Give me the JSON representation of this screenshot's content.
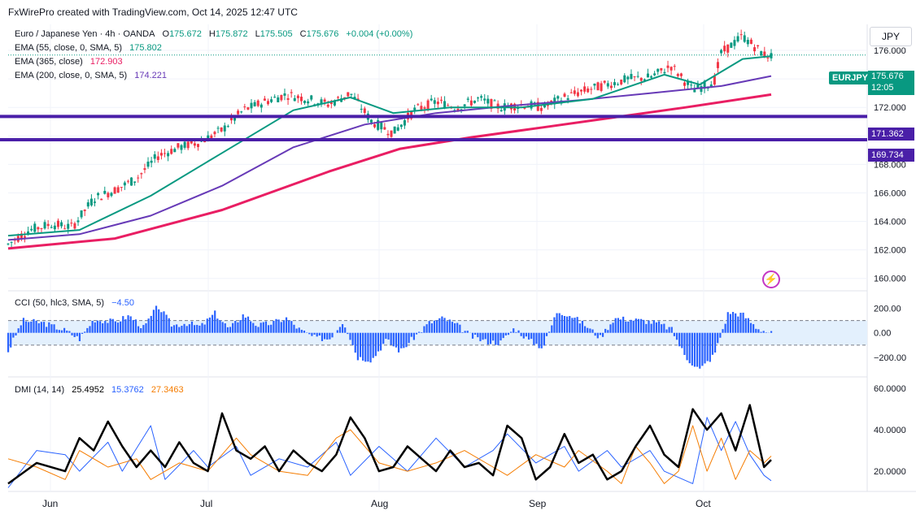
{
  "header": {
    "credit": "FxWirePro created with TradingView.com, Oct 14, 2025 12:47 UTC"
  },
  "currency_badge": "JPY",
  "symbol_tag": "EURJPY",
  "price_tag": {
    "price": "175.676",
    "countdown": "12:05"
  },
  "levels": [
    {
      "value": 171.362,
      "label": "171.362"
    },
    {
      "value": 169.734,
      "label": "169.734"
    }
  ],
  "legend": {
    "main": "Euro / Japanese Yen · 4h · OANDA",
    "o_label": "O",
    "o": "175.672",
    "h_label": "H",
    "h": "175.872",
    "l_label": "L",
    "l": "175.505",
    "c_label": "C",
    "c": "175.676",
    "change": "+0.004 (+0.00%)",
    "ema55": "EMA (55, close, 0, SMA, 5)",
    "ema55_val": "175.802",
    "ema365": "EMA (365, close)",
    "ema365_val": "172.903",
    "ema200": "EMA (200, close, 0, SMA, 5)",
    "ema200_val": "174.221",
    "cci": "CCI (50, hlc3, SMA, 5)",
    "cci_val": "−4.50",
    "dmi": "DMI (14, 14)",
    "adx_val": "25.4952",
    "dip_val": "15.3762",
    "dim_val": "27.3463"
  },
  "colors": {
    "up": "#089981",
    "down": "#f23645",
    "ema55": "#089981",
    "ema365": "#e91e63",
    "ema200": "#673ab7",
    "level": "#4a1fa8",
    "cci": "#2962ff",
    "adx": "#000000",
    "dip": "#2962ff",
    "dim": "#f57c00"
  },
  "chart_data": [
    {
      "type": "candlestick",
      "title": "Euro / Japanese Yen · 4h · OANDA",
      "x_ticks": [
        "Jun",
        "Jul",
        "Aug",
        "Sep",
        "Oct"
      ],
      "y_ticks": [
        "176.000",
        "174.000",
        "172.000",
        "170.000",
        "168.000",
        "166.000",
        "164.000",
        "162.000",
        "160.000"
      ],
      "ylim": [
        159.3,
        176.8
      ],
      "price_path": [
        [
          0,
          162.4
        ],
        [
          3,
          163.4
        ],
        [
          6,
          163.8
        ],
        [
          9,
          163.6
        ],
        [
          12,
          165.6
        ],
        [
          15,
          166.2
        ],
        [
          18,
          167.0
        ],
        [
          21,
          168.6
        ],
        [
          24,
          169.2
        ],
        [
          27,
          169.6
        ],
        [
          30,
          170.4
        ],
        [
          33,
          171.8
        ],
        [
          36,
          172.4
        ],
        [
          39,
          172.9
        ],
        [
          42,
          172.6
        ],
        [
          45,
          172.2
        ],
        [
          48,
          173.0
        ],
        [
          51,
          171.0
        ],
        [
          54,
          170.2
        ],
        [
          57,
          171.8
        ],
        [
          60,
          172.4
        ],
        [
          63,
          172.0
        ],
        [
          66,
          172.6
        ],
        [
          69,
          172.0
        ],
        [
          72,
          172.2
        ],
        [
          75,
          172.0
        ],
        [
          78,
          172.7
        ],
        [
          81,
          173.2
        ],
        [
          84,
          173.6
        ],
        [
          87,
          174.0
        ],
        [
          90,
          174.1
        ],
        [
          93,
          174.9
        ],
        [
          96,
          173.2
        ],
        [
          99,
          173.8
        ],
        [
          100,
          175.8
        ],
        [
          103,
          177.0
        ],
        [
          106,
          175.7
        ],
        [
          107,
          175.6
        ]
      ],
      "ema55": [
        [
          0,
          163.0
        ],
        [
          10,
          163.4
        ],
        [
          20,
          165.8
        ],
        [
          30,
          168.8
        ],
        [
          40,
          171.8
        ],
        [
          48,
          172.7
        ],
        [
          54,
          171.6
        ],
        [
          62,
          172.0
        ],
        [
          72,
          172.0
        ],
        [
          82,
          172.6
        ],
        [
          92,
          174.3
        ],
        [
          97,
          173.6
        ],
        [
          103,
          175.4
        ],
        [
          107,
          175.6
        ]
      ],
      "ema200": [
        [
          0,
          162.7
        ],
        [
          10,
          163.1
        ],
        [
          20,
          164.4
        ],
        [
          30,
          166.5
        ],
        [
          40,
          169.2
        ],
        [
          50,
          170.8
        ],
        [
          60,
          171.6
        ],
        [
          70,
          172.1
        ],
        [
          80,
          172.5
        ],
        [
          90,
          173.0
        ],
        [
          100,
          173.5
        ],
        [
          107,
          174.2
        ]
      ],
      "ema365": [
        [
          0,
          162.1
        ],
        [
          15,
          162.8
        ],
        [
          30,
          164.8
        ],
        [
          45,
          167.5
        ],
        [
          55,
          169.1
        ],
        [
          65,
          169.9
        ],
        [
          75,
          170.6
        ],
        [
          85,
          171.3
        ],
        [
          95,
          172.0
        ],
        [
          107,
          172.9
        ]
      ],
      "levels": [
        171.362,
        169.734
      ]
    },
    {
      "type": "bar",
      "title": "CCI (50, hlc3, SMA, 5)",
      "y_ticks": [
        "200.00",
        "0.00",
        "−200.00"
      ],
      "ylim": [
        -300,
        250
      ],
      "bands": [
        100,
        -100
      ],
      "path": [
        [
          0,
          -150
        ],
        [
          2,
          100
        ],
        [
          5,
          80
        ],
        [
          8,
          20
        ],
        [
          10,
          -50
        ],
        [
          12,
          110
        ],
        [
          15,
          90
        ],
        [
          17,
          140
        ],
        [
          19,
          40
        ],
        [
          21,
          220
        ],
        [
          23,
          60
        ],
        [
          25,
          80
        ],
        [
          27,
          50
        ],
        [
          29,
          160
        ],
        [
          31,
          30
        ],
        [
          33,
          150
        ],
        [
          35,
          60
        ],
        [
          37,
          80
        ],
        [
          39,
          120
        ],
        [
          41,
          20
        ],
        [
          43,
          -40
        ],
        [
          45,
          -50
        ],
        [
          47,
          100
        ],
        [
          49,
          -200
        ],
        [
          51,
          -220
        ],
        [
          53,
          -60
        ],
        [
          55,
          -150
        ],
        [
          57,
          -30
        ],
        [
          59,
          80
        ],
        [
          61,
          120
        ],
        [
          63,
          60
        ],
        [
          65,
          -30
        ],
        [
          67,
          -70
        ],
        [
          69,
          -80
        ],
        [
          71,
          40
        ],
        [
          73,
          -60
        ],
        [
          75,
          -120
        ],
        [
          77,
          180
        ],
        [
          79,
          140
        ],
        [
          81,
          60
        ],
        [
          83,
          -40
        ],
        [
          85,
          120
        ],
        [
          87,
          110
        ],
        [
          89,
          100
        ],
        [
          91,
          80
        ],
        [
          93,
          30
        ],
        [
          95,
          -200
        ],
        [
          97,
          -300
        ],
        [
          99,
          -180
        ],
        [
          101,
          170
        ],
        [
          103,
          150
        ],
        [
          105,
          40
        ],
        [
          107,
          -4.5
        ]
      ]
    },
    {
      "type": "line",
      "title": "DMI (14, 14)",
      "y_ticks": [
        "60.0000",
        "40.0000",
        "20.0000"
      ],
      "ylim": [
        11,
        64
      ],
      "series": [
        {
          "name": "ADX",
          "points": [
            [
              0,
              14
            ],
            [
              4,
              24
            ],
            [
              8,
              20
            ],
            [
              10,
              36
            ],
            [
              12,
              30
            ],
            [
              14,
              44
            ],
            [
              16,
              32
            ],
            [
              18,
              22
            ],
            [
              20,
              30
            ],
            [
              22,
              22
            ],
            [
              24,
              34
            ],
            [
              26,
              24
            ],
            [
              28,
              20
            ],
            [
              30,
              48
            ],
            [
              32,
              30
            ],
            [
              34,
              26
            ],
            [
              36,
              32
            ],
            [
              38,
              20
            ],
            [
              40,
              30
            ],
            [
              42,
              24
            ],
            [
              44,
              20
            ],
            [
              46,
              28
            ],
            [
              48,
              46
            ],
            [
              50,
              36
            ],
            [
              52,
              20
            ],
            [
              54,
              22
            ],
            [
              56,
              32
            ],
            [
              58,
              26
            ],
            [
              60,
              20
            ],
            [
              62,
              30
            ],
            [
              64,
              22
            ],
            [
              66,
              24
            ],
            [
              68,
              18
            ],
            [
              70,
              42
            ],
            [
              72,
              36
            ],
            [
              74,
              16
            ],
            [
              76,
              22
            ],
            [
              78,
              38
            ],
            [
              80,
              24
            ],
            [
              82,
              28
            ],
            [
              84,
              16
            ],
            [
              86,
              20
            ],
            [
              88,
              32
            ],
            [
              90,
              42
            ],
            [
              92,
              28
            ],
            [
              94,
              22
            ],
            [
              96,
              50
            ],
            [
              98,
              40
            ],
            [
              100,
              48
            ],
            [
              102,
              30
            ],
            [
              104,
              52
            ],
            [
              106,
              22
            ],
            [
              107,
              25.5
            ]
          ]
        },
        {
          "name": "DI+",
          "points": [
            [
              0,
              12
            ],
            [
              4,
              30
            ],
            [
              8,
              28
            ],
            [
              10,
              20
            ],
            [
              14,
              34
            ],
            [
              16,
              20
            ],
            [
              20,
              42
            ],
            [
              22,
              16
            ],
            [
              26,
              30
            ],
            [
              28,
              22
            ],
            [
              32,
              32
            ],
            [
              34,
              18
            ],
            [
              38,
              26
            ],
            [
              42,
              22
            ],
            [
              46,
              34
            ],
            [
              48,
              18
            ],
            [
              52,
              32
            ],
            [
              56,
              20
            ],
            [
              60,
              36
            ],
            [
              64,
              22
            ],
            [
              68,
              30
            ],
            [
              70,
              38
            ],
            [
              74,
              24
            ],
            [
              78,
              32
            ],
            [
              80,
              20
            ],
            [
              84,
              30
            ],
            [
              86,
              22
            ],
            [
              90,
              30
            ],
            [
              92,
              20
            ],
            [
              96,
              14
            ],
            [
              98,
              46
            ],
            [
              100,
              30
            ],
            [
              102,
              44
            ],
            [
              104,
              28
            ],
            [
              106,
              18
            ],
            [
              107,
              15.4
            ]
          ]
        },
        {
          "name": "DI−",
          "points": [
            [
              0,
              26
            ],
            [
              4,
              22
            ],
            [
              8,
              16
            ],
            [
              10,
              30
            ],
            [
              14,
              22
            ],
            [
              18,
              26
            ],
            [
              20,
              16
            ],
            [
              24,
              24
            ],
            [
              28,
              20
            ],
            [
              32,
              36
            ],
            [
              34,
              28
            ],
            [
              38,
              20
            ],
            [
              42,
              18
            ],
            [
              46,
              36
            ],
            [
              48,
              40
            ],
            [
              52,
              24
            ],
            [
              56,
              20
            ],
            [
              60,
              24
            ],
            [
              64,
              30
            ],
            [
              68,
              22
            ],
            [
              70,
              18
            ],
            [
              74,
              28
            ],
            [
              78,
              22
            ],
            [
              80,
              30
            ],
            [
              84,
              20
            ],
            [
              86,
              14
            ],
            [
              88,
              32
            ],
            [
              90,
              24
            ],
            [
              92,
              14
            ],
            [
              94,
              20
            ],
            [
              96,
              42
            ],
            [
              98,
              20
            ],
            [
              100,
              36
            ],
            [
              102,
              16
            ],
            [
              104,
              30
            ],
            [
              106,
              24
            ],
            [
              107,
              27.3
            ]
          ]
        }
      ]
    }
  ]
}
